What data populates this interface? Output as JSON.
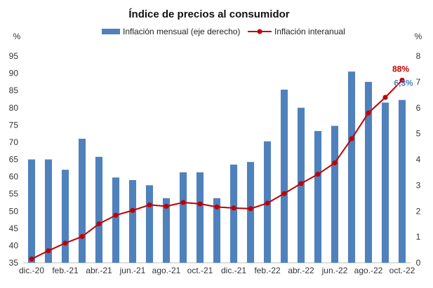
{
  "chart_data": {
    "type": "bar+line",
    "title": "Índice de precios al consumidor",
    "left_axis": {
      "unit": "%",
      "ylim": [
        35,
        95
      ],
      "ticks": [
        "35",
        "40",
        "45",
        "50",
        "55",
        "60",
        "65",
        "70",
        "75",
        "80",
        "85",
        "90",
        "95"
      ]
    },
    "right_axis": {
      "unit": "%",
      "ylim": [
        0,
        8
      ],
      "ticks": [
        "0",
        "1",
        "2",
        "3",
        "4",
        "5",
        "6",
        "7",
        "8"
      ]
    },
    "categories": [
      "dic.-20",
      "ene.-21",
      "feb.-21",
      "mar.-21",
      "abr.-21",
      "may.-21",
      "jun.-21",
      "jul.-21",
      "ago.-21",
      "sep.-21",
      "oct.-21",
      "nov.-21",
      "dic.-21",
      "ene.-22",
      "feb.-22",
      "mar.-22",
      "abr.-22",
      "may.-22",
      "jun.-22",
      "jul.-22",
      "ago.-22",
      "sep.-22",
      "oct.-22"
    ],
    "x_tick_labels": [
      "dic.-20",
      "",
      "feb.-21",
      "",
      "abr.-21",
      "",
      "jun.-21",
      "",
      "ago.-21",
      "",
      "oct.-21",
      "",
      "dic.-21",
      "",
      "feb.-22",
      "",
      "abr.-22",
      "",
      "jun.-22",
      "",
      "ago.-22",
      "",
      "oct.-22"
    ],
    "series": [
      {
        "name": "Inflación mensual (eje derecho)",
        "type": "bar",
        "axis": "right",
        "color": "#4f81bd",
        "values": [
          4.0,
          4.0,
          3.6,
          4.8,
          4.1,
          3.3,
          3.2,
          3.0,
          2.5,
          3.5,
          3.5,
          2.5,
          3.8,
          3.9,
          4.7,
          6.7,
          6.0,
          5.1,
          5.3,
          7.4,
          7.0,
          6.2,
          6.3
        ]
      },
      {
        "name": "Inflación interanual",
        "type": "line",
        "axis": "left",
        "color": "#c00000",
        "values": [
          36.1,
          38.5,
          40.7,
          42.6,
          46.3,
          48.8,
          50.2,
          51.8,
          51.4,
          52.5,
          52.1,
          51.2,
          50.9,
          50.7,
          52.3,
          55.1,
          58.0,
          60.7,
          64.0,
          71.0,
          78.5,
          83.0,
          88.0
        ]
      }
    ],
    "annotations": [
      {
        "text": "88%",
        "color": "#c00000",
        "series": "Inflación interanual",
        "point": "oct.-22"
      },
      {
        "text": "6,3%",
        "color": "#4f81bd",
        "series": "Inflación mensual (eje derecho)",
        "point": "oct.-22"
      }
    ],
    "grid": false,
    "legend": "top"
  }
}
